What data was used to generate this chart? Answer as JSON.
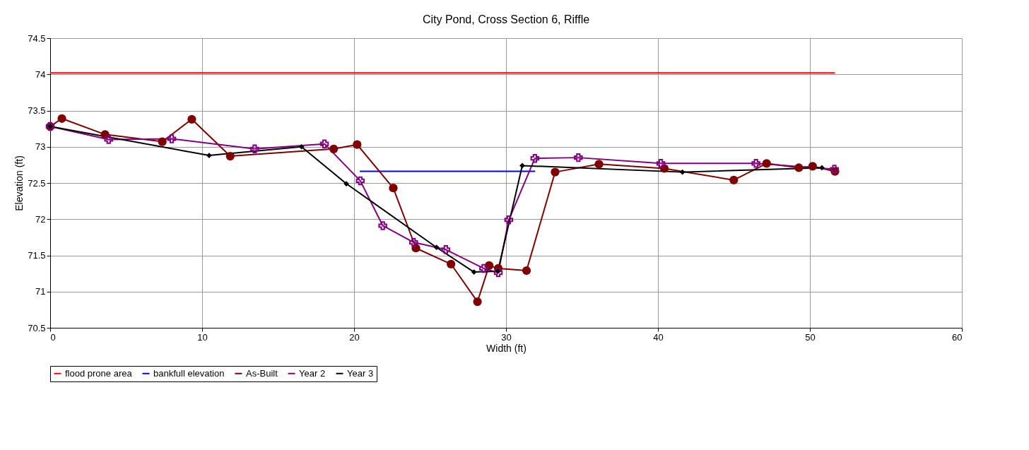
{
  "chart_data": {
    "type": "line",
    "title": "City Pond, Cross Section 6, Riffle",
    "xlabel": "Width (ft)",
    "ylabel": "Elevation (ft)",
    "xlim": [
      0,
      60
    ],
    "xticks": [
      0,
      10,
      20,
      30,
      40,
      50,
      60
    ],
    "ylim": [
      70.5,
      74.5
    ],
    "yticks": [
      70.5,
      71,
      71.5,
      72,
      72.5,
      73,
      73.5,
      74,
      74.5
    ],
    "grid": true,
    "legend": "bottom",
    "series": [
      {
        "name": "flood prone area",
        "color": "#ff0000",
        "marker": "none",
        "x": [
          0,
          51.65
        ],
        "values": [
          74.02,
          74.02
        ]
      },
      {
        "name": "bankfull elevation",
        "color": "#0000ff",
        "marker": "none",
        "x": [
          20.38,
          31.92
        ],
        "values": [
          72.66,
          72.66
        ]
      },
      {
        "name": "As-Built",
        "color": "#800000",
        "marker": "circle",
        "x": [
          0,
          0.77,
          3.61,
          7.38,
          9.32,
          11.85,
          18.66,
          20.2,
          22.58,
          24.07,
          26.38,
          28.12,
          28.89,
          29.49,
          31.35,
          33.23,
          36.12,
          40.42,
          44.99,
          47.15,
          49.27,
          50.18,
          51.65
        ],
        "values": [
          73.28,
          73.39,
          73.17,
          73.07,
          73.38,
          72.87,
          72.97,
          73.03,
          72.43,
          71.6,
          71.38,
          70.86,
          71.36,
          71.32,
          71.29,
          72.65,
          72.76,
          72.7,
          72.54,
          72.77,
          72.71,
          72.73,
          72.66
        ]
      },
      {
        "name": "Year 2",
        "color": "#800080",
        "marker": "cross",
        "x": [
          0,
          3.85,
          8.0,
          13.46,
          18.05,
          20.41,
          21.89,
          23.92,
          26.04,
          28.53,
          29.49,
          30.18,
          31.9,
          34.76,
          40.19,
          46.45,
          51.61
        ],
        "values": [
          73.28,
          73.1,
          73.11,
          72.97,
          73.04,
          72.53,
          71.91,
          71.68,
          71.58,
          71.32,
          71.26,
          71.99,
          72.84,
          72.85,
          72.77,
          72.77,
          72.69
        ]
      },
      {
        "name": "Year 3",
        "color": "#000000",
        "marker": "diamond",
        "x": [
          0,
          10.46,
          16.54,
          19.49,
          25.43,
          27.89,
          29.46,
          31.07,
          41.61,
          50.79
        ],
        "values": [
          73.28,
          72.88,
          73.0,
          72.49,
          71.61,
          71.27,
          71.28,
          72.74,
          72.65,
          72.71
        ]
      }
    ]
  }
}
